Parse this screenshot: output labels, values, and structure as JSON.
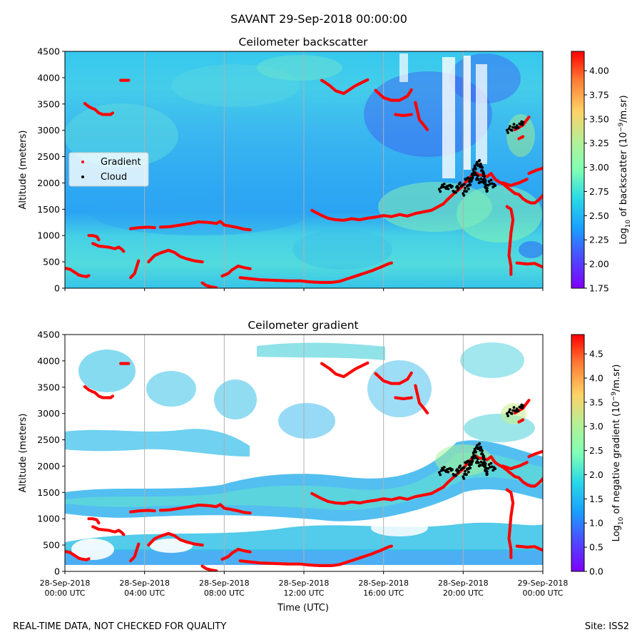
{
  "figure": {
    "suptitle": "SAVANT 29-Sep-2018 00:00:00",
    "footer_left": "REAL-TIME DATA, NOT CHECKED FOR QUALITY",
    "footer_right": "Site: ISS2"
  },
  "chart_data": [
    {
      "type": "heatmap",
      "title": "Ceilometer backscatter",
      "ylabel": "Altitude (meters)",
      "xlabel": "",
      "ylim": [
        0,
        4500
      ],
      "yticks": [
        0,
        500,
        1000,
        1500,
        2000,
        2500,
        3000,
        3500,
        4000,
        4500
      ],
      "x_hours": [
        0,
        24
      ],
      "colorbar": {
        "label_main": "Log",
        "label_sub": "10",
        "label_mid": " of backscatter (10",
        "label_sup": "−9",
        "label_end": "/m.sr)",
        "range": [
          1.75,
          4.2
        ],
        "ticks": [
          "1.75",
          "2.00",
          "2.25",
          "2.50",
          "2.75",
          "3.00",
          "3.25",
          "3.50",
          "3.75",
          "4.00"
        ]
      },
      "legend": {
        "placement": "center-left",
        "entries": [
          {
            "label": "Gradient",
            "color": "#ff0000"
          },
          {
            "label": "Cloud",
            "color": "#000000"
          }
        ]
      },
      "grid": "vertical-at-ticks"
    },
    {
      "type": "heatmap",
      "title": "Ceilometer gradient",
      "ylabel": "Altitude (meters)",
      "xlabel": "Time (UTC)",
      "ylim": [
        0,
        4500
      ],
      "yticks": [
        0,
        500,
        1000,
        1500,
        2000,
        2500,
        3000,
        3500,
        4000,
        4500
      ],
      "xticks": [
        {
          "h": 0,
          "l1": "28-Sep-2018",
          "l2": "00:00 UTC"
        },
        {
          "h": 4,
          "l1": "28-Sep-2018",
          "l2": "04:00 UTC"
        },
        {
          "h": 8,
          "l1": "28-Sep-2018",
          "l2": "08:00 UTC"
        },
        {
          "h": 12,
          "l1": "28-Sep-2018",
          "l2": "12:00 UTC"
        },
        {
          "h": 16,
          "l1": "28-Sep-2018",
          "l2": "16:00 UTC"
        },
        {
          "h": 20,
          "l1": "28-Sep-2018",
          "l2": "20:00 UTC"
        },
        {
          "h": 24,
          "l1": "29-Sep-2018",
          "l2": "00:00 UTC"
        }
      ],
      "colorbar": {
        "label_main": "Log",
        "label_sub": "10",
        "label_mid": " of negative gradient (10",
        "label_sup": "−9",
        "label_end": "/m.sr)",
        "range": [
          0,
          4.9
        ],
        "ticks": [
          "0.0",
          "0.5",
          "1.0",
          "1.5",
          "2.0",
          "2.5",
          "3.0",
          "3.5",
          "4.0",
          "4.5"
        ]
      },
      "grid": "vertical-at-ticks"
    }
  ],
  "gradient_series": [
    {
      "name": "Gradient",
      "color": "#ff0000",
      "segments": [
        [
          [
            0.0,
            380
          ],
          [
            0.25,
            360
          ],
          [
            0.5,
            300
          ],
          [
            0.7,
            250
          ],
          [
            0.9,
            230
          ],
          [
            1.1,
            220
          ],
          [
            1.2,
            240
          ]
        ],
        [
          [
            1.2,
            1000
          ],
          [
            1.4,
            1000
          ],
          [
            1.6,
            980
          ],
          [
            1.7,
            920
          ]
        ],
        [
          [
            1.4,
            850
          ],
          [
            1.7,
            800
          ],
          [
            2.2,
            780
          ],
          [
            2.5,
            750
          ],
          [
            2.7,
            780
          ],
          [
            2.85,
            740
          ],
          [
            2.95,
            700
          ]
        ],
        [
          [
            1.0,
            3510
          ],
          [
            1.2,
            3450
          ],
          [
            1.35,
            3420
          ],
          [
            1.5,
            3400
          ],
          [
            1.7,
            3330
          ],
          [
            1.9,
            3300
          ],
          [
            2.3,
            3300
          ],
          [
            2.4,
            3330
          ]
        ],
        [
          [
            2.8,
            3950
          ],
          [
            3.2,
            3950
          ]
        ],
        [
          [
            3.3,
            1130
          ],
          [
            3.7,
            1150
          ],
          [
            4.2,
            1160
          ],
          [
            4.5,
            1150
          ]
        ],
        [
          [
            4.8,
            1160
          ],
          [
            5.3,
            1170
          ],
          [
            5.8,
            1200
          ],
          [
            6.3,
            1230
          ],
          [
            6.7,
            1260
          ],
          [
            7.2,
            1250
          ],
          [
            7.6,
            1230
          ],
          [
            7.8,
            1270
          ],
          [
            8.0,
            1200
          ],
          [
            8.3,
            1180
          ],
          [
            8.7,
            1150
          ],
          [
            9.0,
            1120
          ],
          [
            9.3,
            1110
          ]
        ],
        [
          [
            4.2,
            500
          ],
          [
            4.5,
            620
          ],
          [
            4.8,
            670
          ],
          [
            5.2,
            720
          ],
          [
            5.5,
            680
          ],
          [
            5.8,
            600
          ],
          [
            6.1,
            560
          ],
          [
            6.5,
            520
          ],
          [
            6.9,
            500
          ]
        ],
        [
          [
            3.3,
            200
          ],
          [
            3.5,
            280
          ],
          [
            3.6,
            400
          ],
          [
            3.7,
            520
          ]
        ],
        [
          [
            6.9,
            100
          ],
          [
            7.1,
            50
          ],
          [
            7.3,
            30
          ],
          [
            7.6,
            10
          ]
        ],
        [
          [
            7.9,
            230
          ],
          [
            8.2,
            280
          ],
          [
            8.4,
            350
          ],
          [
            8.7,
            420
          ],
          [
            9.0,
            390
          ],
          [
            9.3,
            370
          ]
        ],
        [
          [
            8.8,
            200
          ],
          [
            9.3,
            180
          ],
          [
            9.8,
            160
          ],
          [
            10.5,
            150
          ],
          [
            11.2,
            140
          ],
          [
            11.8,
            140
          ],
          [
            12.3,
            120
          ],
          [
            12.8,
            110
          ],
          [
            13.4,
            110
          ],
          [
            13.8,
            130
          ],
          [
            14.2,
            180
          ],
          [
            14.6,
            230
          ],
          [
            15.0,
            280
          ],
          [
            15.4,
            330
          ],
          [
            15.8,
            390
          ],
          [
            16.1,
            440
          ],
          [
            16.3,
            470
          ],
          [
            16.4,
            480
          ]
        ],
        [
          [
            12.4,
            1480
          ],
          [
            12.8,
            1400
          ],
          [
            13.2,
            1330
          ],
          [
            13.6,
            1300
          ],
          [
            14.0,
            1290
          ],
          [
            14.4,
            1320
          ],
          [
            14.8,
            1300
          ],
          [
            15.2,
            1330
          ],
          [
            15.6,
            1350
          ],
          [
            16.0,
            1380
          ],
          [
            16.4,
            1360
          ],
          [
            16.8,
            1400
          ],
          [
            17.2,
            1370
          ],
          [
            17.6,
            1420
          ],
          [
            18.0,
            1450
          ],
          [
            18.4,
            1480
          ],
          [
            18.8,
            1560
          ],
          [
            19.0,
            1600
          ],
          [
            19.2,
            1680
          ],
          [
            19.4,
            1750
          ],
          [
            19.6,
            1820
          ],
          [
            19.8,
            1880
          ],
          [
            20.0,
            1950
          ],
          [
            20.2,
            2050
          ],
          [
            20.4,
            2130
          ],
          [
            20.6,
            2200
          ],
          [
            20.8,
            2150
          ],
          [
            21.0,
            2150
          ],
          [
            21.2,
            2120
          ],
          [
            21.4,
            2180
          ],
          [
            21.6,
            2070
          ],
          [
            21.8,
            2020
          ],
          [
            22.0,
            1980
          ],
          [
            22.2,
            1920
          ],
          [
            22.4,
            1860
          ],
          [
            22.6,
            1800
          ],
          [
            22.8,
            1780
          ],
          [
            23.0,
            1700
          ],
          [
            23.2,
            1650
          ],
          [
            23.4,
            1620
          ],
          [
            23.6,
            1620
          ],
          [
            23.8,
            1680
          ],
          [
            24.0,
            1760
          ]
        ],
        [
          [
            22.0,
            2000
          ],
          [
            22.4,
            1950
          ],
          [
            22.6,
            1980
          ],
          [
            22.8,
            2000
          ],
          [
            23.2,
            2070
          ]
        ],
        [
          [
            23.3,
            2180
          ],
          [
            23.6,
            2230
          ],
          [
            24.0,
            2280
          ]
        ],
        [
          [
            12.9,
            3950
          ],
          [
            13.3,
            3850
          ],
          [
            13.6,
            3750
          ],
          [
            14.0,
            3700
          ],
          [
            14.6,
            3850
          ],
          [
            15.2,
            3960
          ]
        ],
        [
          [
            15.6,
            3760
          ],
          [
            16.0,
            3620
          ],
          [
            16.4,
            3570
          ],
          [
            16.8,
            3570
          ],
          [
            17.2,
            3650
          ],
          [
            17.4,
            3770
          ]
        ],
        [
          [
            17.6,
            3530
          ],
          [
            17.8,
            3200
          ],
          [
            18.0,
            3110
          ],
          [
            18.2,
            3010
          ]
        ],
        [
          [
            16.6,
            3300
          ],
          [
            17.0,
            3280
          ],
          [
            17.4,
            3300
          ]
        ],
        [
          [
            22.6,
            3010
          ],
          [
            23.0,
            3100
          ],
          [
            23.3,
            3250
          ]
        ],
        [
          [
            22.8,
            2840
          ],
          [
            23.0,
            2880
          ]
        ],
        [
          [
            22.7,
            480
          ],
          [
            23.2,
            460
          ],
          [
            23.6,
            470
          ],
          [
            24.0,
            400
          ]
        ],
        [
          [
            22.2,
            1550
          ],
          [
            22.4,
            1500
          ],
          [
            22.5,
            1300
          ],
          [
            22.4,
            1050
          ],
          [
            22.3,
            620
          ],
          [
            22.4,
            420
          ],
          [
            22.4,
            260
          ]
        ]
      ]
    },
    {
      "name": "Cloud",
      "color": "#000000",
      "segments": [
        [
          [
            18.8,
            1880
          ],
          [
            19.0,
            1920
          ],
          [
            19.2,
            1950
          ],
          [
            19.4,
            1900
          ],
          [
            19.6,
            1850
          ],
          [
            19.8,
            1950
          ],
          [
            20.0,
            2000
          ],
          [
            20.2,
            2050
          ],
          [
            20.4,
            2100
          ],
          [
            20.6,
            2150
          ],
          [
            20.8,
            2050
          ],
          [
            21.0,
            2000
          ],
          [
            21.2,
            1950
          ],
          [
            21.4,
            2000
          ],
          [
            21.6,
            1950
          ]
        ],
        [
          [
            20.0,
            1800
          ],
          [
            20.3,
            1950
          ],
          [
            20.6,
            2300
          ],
          [
            20.8,
            2400
          ],
          [
            21.0,
            2200
          ],
          [
            21.2,
            1850
          ]
        ],
        [
          [
            22.2,
            3000
          ],
          [
            22.5,
            3050
          ],
          [
            22.7,
            3100
          ],
          [
            22.9,
            3100
          ],
          [
            23.0,
            3150
          ]
        ]
      ]
    }
  ]
}
